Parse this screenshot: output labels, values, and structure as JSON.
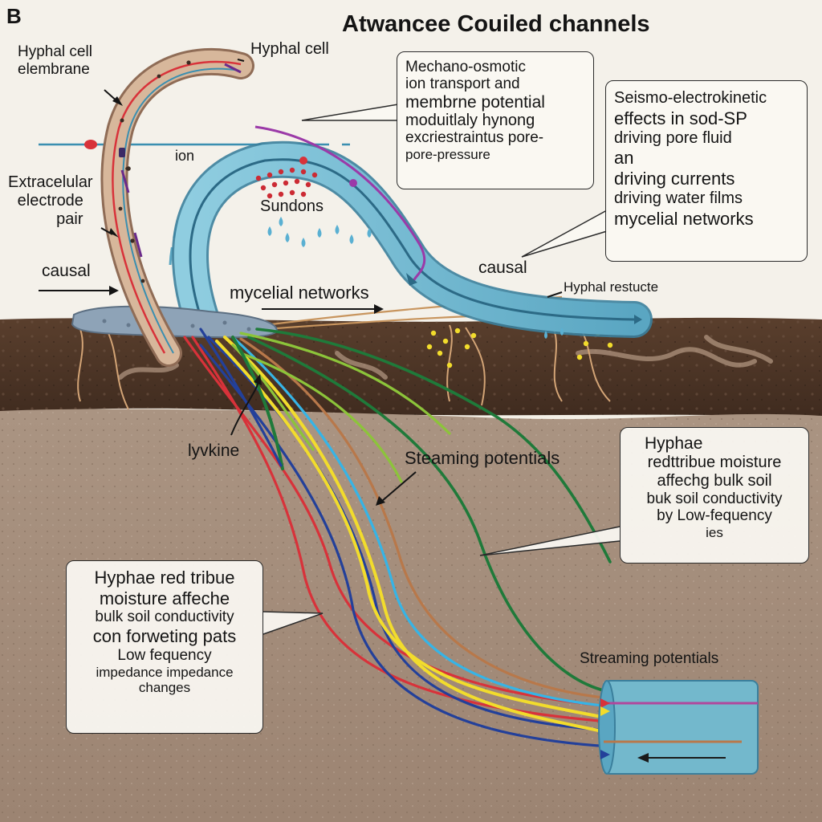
{
  "panel_letter": "B",
  "title": "Atwancee Couiled channels",
  "colors": {
    "soil_top": "#4a3426",
    "soil_bottom": "#a08a78",
    "channel": "#6fb4cc",
    "membrane": "#c9a689",
    "fiber_red": "#d8323a",
    "fiber_blue": "#23409a",
    "fiber_yellow": "#f2dc2c",
    "fiber_green": "#1f7a3a",
    "fiber_light_green": "#8cc43a",
    "fiber_cyan": "#36b4e6",
    "fiber_brown": "#b8784a"
  },
  "labels": {
    "hyphal_cell_membrane": [
      "Hyphal cell",
      "elembrane"
    ],
    "hyphal_cell": "Hyphal cell",
    "ion": "ion",
    "extracellular_electrode_pair": [
      "Extracelular",
      "electrode",
      "pair"
    ],
    "sundons": "Sundons",
    "causal_left": "causal",
    "causal_right": "causal",
    "mycelial_networks": "mycelial networks",
    "hyphal_restute": "Hyphal restuсte",
    "lyvkine": "lyvkine",
    "steaming_potentials": "Steaming potentials",
    "streaming_potentials": "Streaming potentials"
  },
  "boxes": {
    "mechano": [
      "Mechano-osmotic",
      "ion transport and",
      "membrne potential",
      "moduitlaly hynong",
      "excriestraintus pore-",
      "pore-pressure"
    ],
    "seismo": [
      "Seismo-electrokinetic",
      "effects in sod-SP",
      "driving pore fluid",
      "an",
      "driving currents",
      "driving water films",
      "mycelial networks"
    ],
    "hyphae_right": [
      "Hyphae",
      "redttribue moisture",
      "affechg bulk soil",
      "buk soil conductivity",
      "by Low-fequency",
      "ies"
    ],
    "hyphae_left": [
      "Hyphae red tribue",
      "moisture affeche",
      "bulk soil conductivity",
      "con forweting pats",
      "Low fequency",
      "impedance impedance",
      "changes"
    ]
  }
}
